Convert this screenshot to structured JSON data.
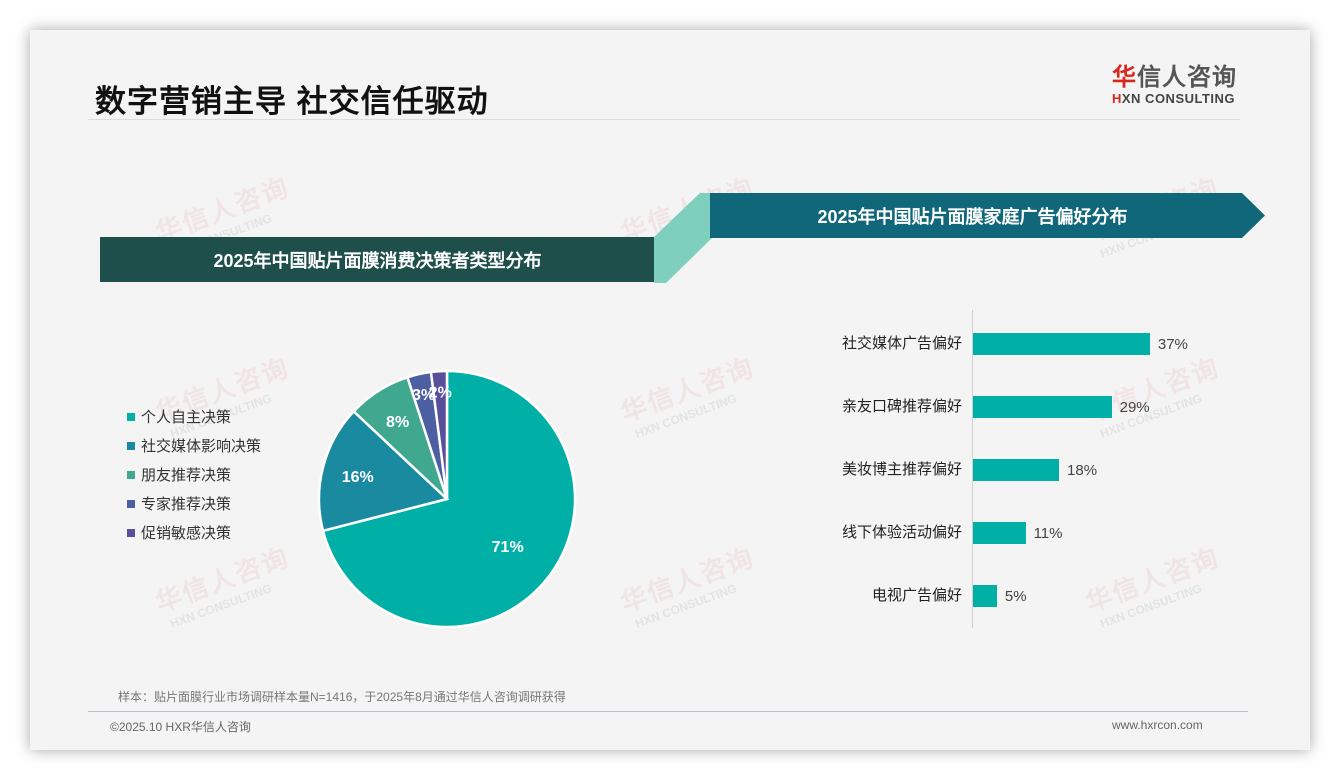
{
  "header": {
    "title": "数字营销主导 社交信任驱动",
    "logo_cn_first": "华",
    "logo_cn_rest": "信人咨询",
    "logo_en_first": "H",
    "logo_en_rest": "XN CONSULTING"
  },
  "watermark": {
    "cn": "华信人咨询",
    "en": "HXN CONSULTING"
  },
  "banners": {
    "left": "2025年中国贴片面膜消费决策者类型分布",
    "right": "2025年中国贴片面膜家庭广告偏好分布"
  },
  "colors": {
    "banner_left": "#1f4f4a",
    "banner_right": "#10677a",
    "connector": "#7fcfbf",
    "bar": "#00b0a6"
  },
  "chart_data": [
    {
      "type": "pie",
      "title": "2025年中国贴片面膜消费决策者类型分布",
      "categories": [
        "个人自主决策",
        "社交媒体影响决策",
        "朋友推荐决策",
        "专家推荐决策",
        "促销敏感决策"
      ],
      "values": [
        71,
        16,
        8,
        3,
        2
      ],
      "labels": [
        "71%",
        "16%",
        "8%",
        "3%",
        "2%"
      ],
      "colors": [
        "#00b0a6",
        "#1a8aa0",
        "#3fa88e",
        "#4d5fa3",
        "#5a4f9a"
      ],
      "legend_position": "left",
      "start_angle": "12 o'clock, clockwise"
    },
    {
      "type": "bar",
      "orientation": "horizontal",
      "title": "2025年中国贴片面膜家庭广告偏好分布",
      "categories": [
        "社交媒体广告偏好",
        "亲友口碑推荐偏好",
        "美妆博主推荐偏好",
        "线下体验活动偏好",
        "电视广告偏好"
      ],
      "values": [
        37,
        29,
        18,
        11,
        5
      ],
      "labels": [
        "37%",
        "29%",
        "18%",
        "11%",
        "5%"
      ],
      "unit": "%",
      "grid": false,
      "xlim": [
        0,
        40
      ]
    }
  ],
  "legend": {
    "items": [
      "个人自主决策",
      "社交媒体影响决策",
      "朋友推荐决策",
      "专家推荐决策",
      "促销敏感决策"
    ]
  },
  "footer": {
    "note": "样本：贴片面膜行业市场调研样本量N=1416，于2025年8月通过华信人咨询调研获得",
    "copyright": "©2025.10 HXR华信人咨询",
    "website": "www.hxrcon.com"
  }
}
